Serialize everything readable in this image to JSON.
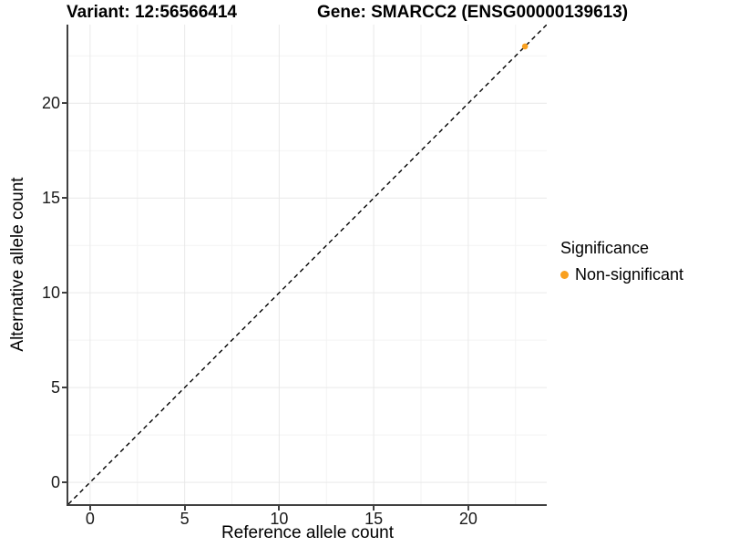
{
  "titles": {
    "left": "Variant: 12:56566414",
    "right": "Gene: SMARCC2 (ENSG00000139613)"
  },
  "chart_data": {
    "type": "scatter",
    "title": "Variant: 12:56566414  Gene: SMARCC2 (ENSG00000139613)",
    "xlabel": "Reference allele count",
    "ylabel": "Alternative allele count",
    "xlim": [
      -1.15,
      24.15
    ],
    "ylim": [
      -1.15,
      24.15
    ],
    "xticks": [
      0,
      5,
      10,
      15,
      20
    ],
    "yticks": [
      0,
      5,
      10,
      15,
      20
    ],
    "minor_xticks": [
      2.5,
      7.5,
      12.5,
      17.5,
      22.5
    ],
    "minor_yticks": [
      2.5,
      7.5,
      12.5,
      17.5,
      22.5
    ],
    "grid": true,
    "legend_position": "right",
    "identity_line": {
      "slope": 1,
      "intercept": 0,
      "style": "dashed",
      "color": "#000000"
    },
    "series": [
      {
        "name": "Non-significant",
        "points": [
          {
            "x": 23,
            "y": 23
          }
        ]
      }
    ]
  },
  "legend": {
    "title": "Significance",
    "items": [
      {
        "label": "Non-significant",
        "color": "#F9A01F"
      }
    ]
  },
  "colors": {
    "point": "#F9A01F",
    "axis_line": "#404040",
    "grid_major": "#e9e9e9",
    "grid_minor": "#f3f3f3",
    "tick_text": "#1a1a1a"
  }
}
